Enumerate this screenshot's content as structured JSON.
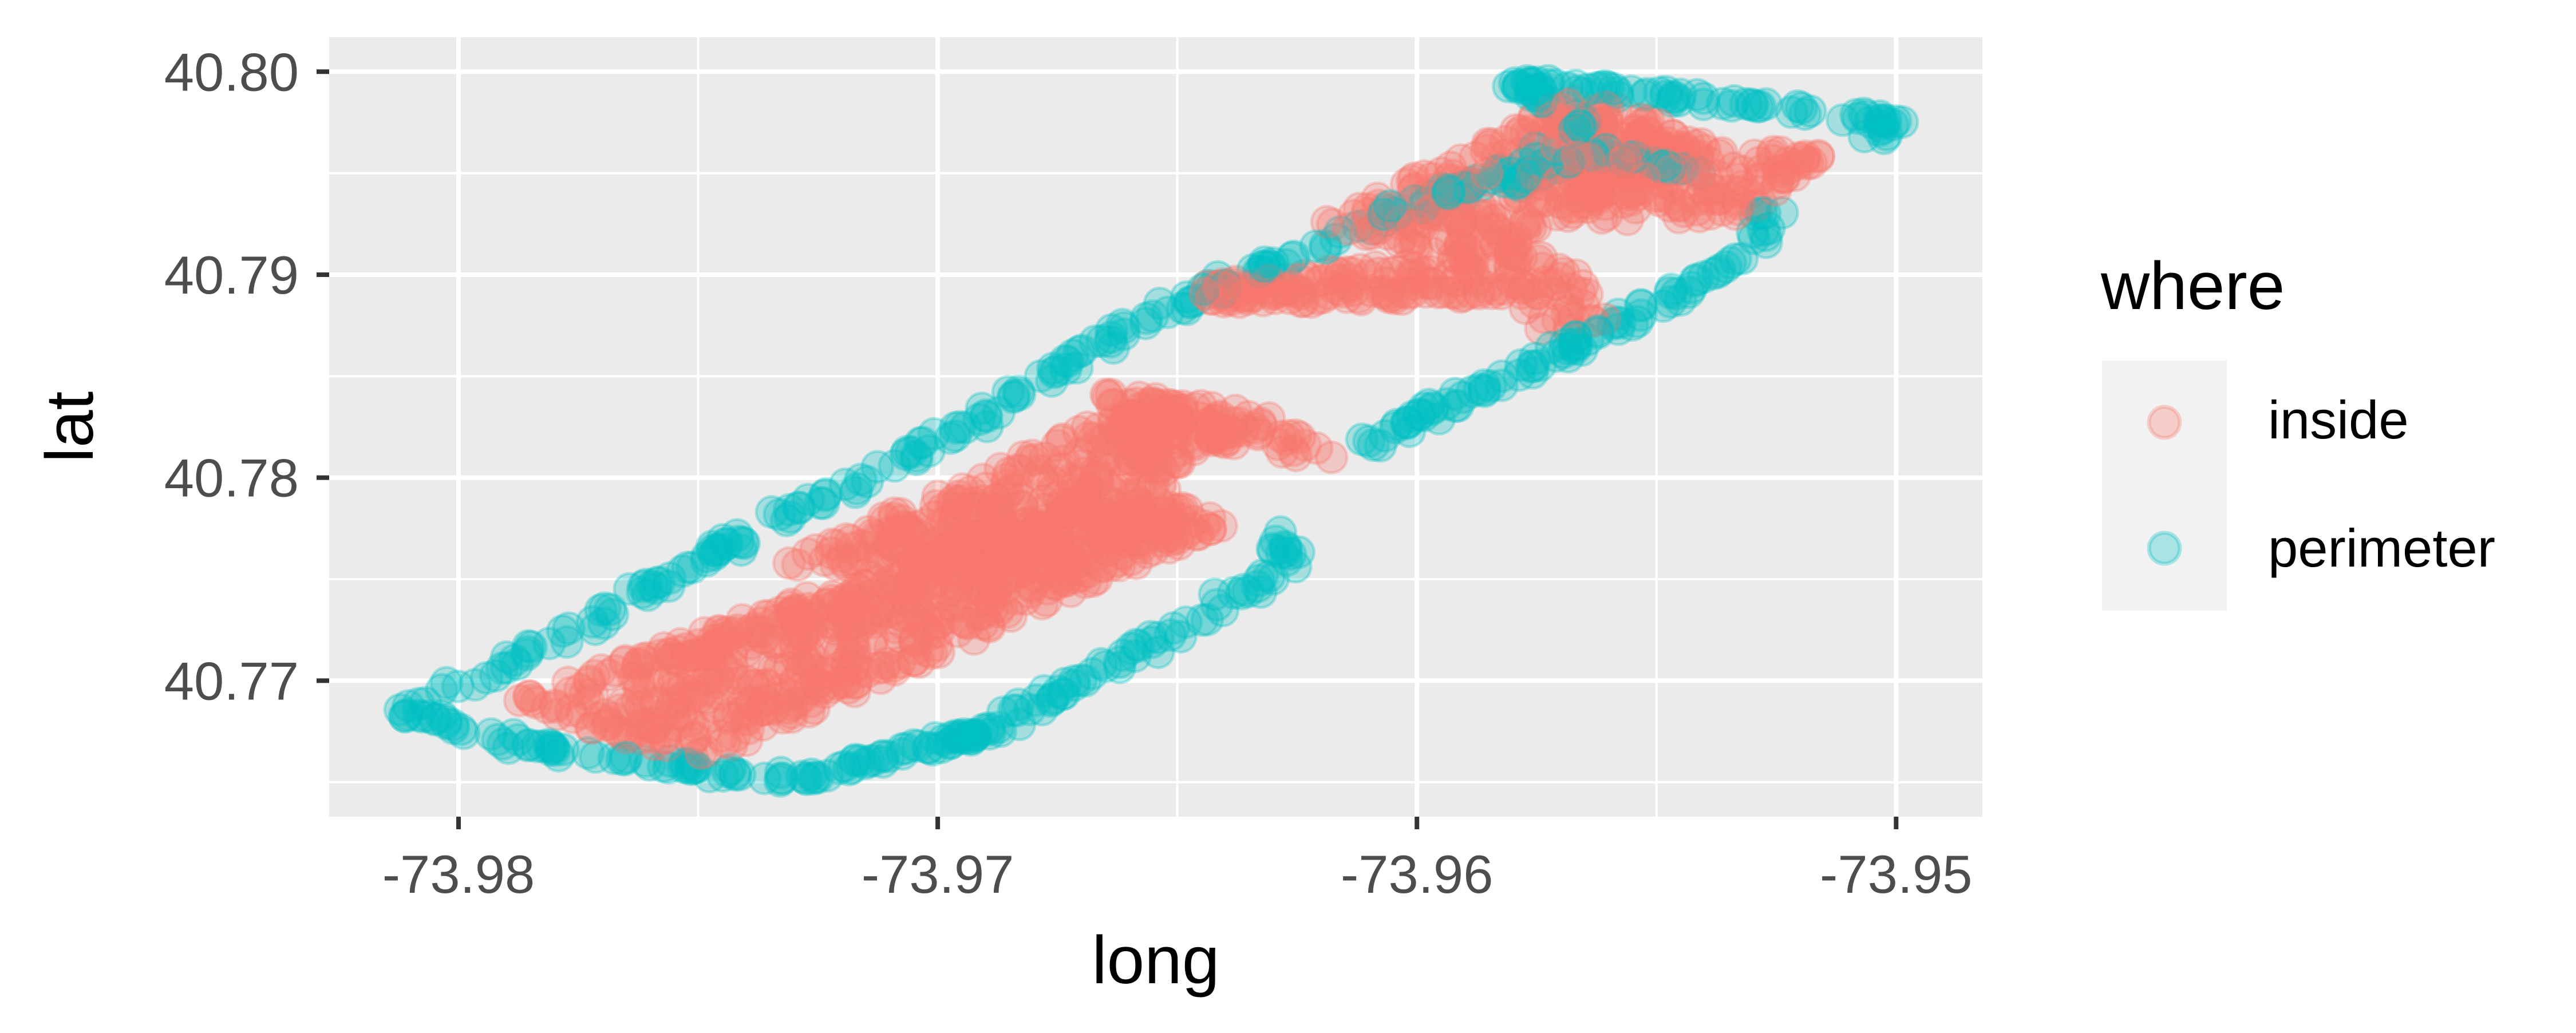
{
  "chart_data": {
    "type": "scatter",
    "title": "",
    "xlabel": "long",
    "ylabel": "lat",
    "xlim": [
      -73.9827,
      -73.9482
    ],
    "ylim": [
      40.7633,
      40.8017
    ],
    "x_ticks": [
      -73.98,
      -73.97,
      -73.96,
      -73.95
    ],
    "x_tick_labels": [
      "-73.98",
      "-73.97",
      "-73.96",
      "-73.95"
    ],
    "x_minor_ticks": [
      -73.975,
      -73.965,
      -73.955
    ],
    "y_ticks": [
      40.77,
      40.78,
      40.79,
      40.8
    ],
    "y_tick_labels": [
      "40.77",
      "40.78",
      "40.79",
      "40.80"
    ],
    "y_minor_ticks": [
      40.765,
      40.775,
      40.785,
      40.795
    ],
    "grid": true,
    "point_alpha": 0.3,
    "legend": {
      "title": "where",
      "position": "right",
      "entries": [
        {
          "name": "inside",
          "color": "#F8766D"
        },
        {
          "name": "perimeter",
          "color": "#00BFC4"
        }
      ]
    },
    "series": [
      {
        "name": "inside",
        "color": "#F8766D",
        "regions": [
          {
            "corners": [
              [
                -73.979,
                40.769
              ],
              [
                -73.9655,
                40.78
              ],
              [
                -73.964,
                40.7775
              ],
              [
                -73.975,
                40.766
              ]
            ],
            "count": 700
          },
          {
            "corners": [
              [
                -73.9735,
                40.7755
              ],
              [
                -73.9655,
                40.784
              ],
              [
                -73.963,
                40.783
              ],
              [
                -73.969,
                40.776
              ]
            ],
            "count": 300
          },
          {
            "corners": [
              [
                -73.967,
                40.7845
              ],
              [
                -73.9625,
                40.7825
              ],
              [
                -73.9615,
                40.7805
              ],
              [
                -73.966,
                40.7825
              ]
            ],
            "count": 60
          },
          {
            "corners": [
              [
                -73.965,
                40.7895
              ],
              [
                -73.958,
                40.791
              ],
              [
                -73.957,
                40.789
              ],
              [
                -73.964,
                40.7885
              ]
            ],
            "count": 140
          },
          {
            "corners": [
              [
                -73.962,
                40.7925
              ],
              [
                -73.9565,
                40.799
              ],
              [
                -73.954,
                40.7965
              ],
              [
                -73.959,
                40.7905
              ]
            ],
            "count": 260
          },
          {
            "corners": [
              [
                -73.9565,
                40.7965
              ],
              [
                -73.9515,
                40.796
              ],
              [
                -73.953,
                40.793
              ],
              [
                -73.957,
                40.7925
              ]
            ],
            "count": 140
          },
          {
            "corners": [
              [
                -73.9585,
                40.7915
              ],
              [
                -73.9575,
                40.787
              ],
              [
                -73.956,
                40.7875
              ],
              [
                -73.957,
                40.7915
              ]
            ],
            "count": 40
          }
        ]
      },
      {
        "name": "perimeter",
        "color": "#00BFC4",
        "paths": [
          [
            [
              -73.9812,
              40.7685
            ],
            [
              -73.9775,
              40.7725
            ],
            [
              -73.9745,
              40.7765
            ],
            [
              -73.9715,
              40.78
            ],
            [
              -73.969,
              40.783
            ],
            [
              -73.966,
              40.7875
            ],
            [
              -73.963,
              40.7905
            ],
            [
              -73.9605,
              40.793
            ],
            [
              -73.9575,
              40.7955
            ],
            [
              -73.9565,
              40.7975
            ],
            [
              -73.958,
              40.7995
            ],
            [
              -73.9535,
              40.7985
            ],
            [
              -73.95,
              40.7975
            ],
            [
              -73.9505,
              40.7965
            ]
          ],
          [
            [
              -73.9812,
              40.7685
            ],
            [
              -73.979,
              40.767
            ],
            [
              -73.976,
              40.766
            ],
            [
              -73.973,
              40.765
            ],
            [
              -73.9715,
              40.766
            ],
            [
              -73.969,
              40.7675
            ],
            [
              -73.967,
              40.77
            ],
            [
              -73.965,
              40.7725
            ],
            [
              -73.9625,
              40.776
            ],
            [
              -73.963,
              40.7775
            ]
          ],
          [
            [
              -73.961,
              40.7815
            ],
            [
              -73.96,
              40.783
            ],
            [
              -73.958,
              40.785
            ],
            [
              -73.956,
              40.7875
            ],
            [
              -73.9545,
              40.789
            ],
            [
              -73.953,
              40.791
            ],
            [
              -73.9525,
              40.7935
            ]
          ],
          [
            [
              -73.958,
              40.7945
            ],
            [
              -73.956,
              40.796
            ],
            [
              -73.954,
              40.795
            ]
          ]
        ],
        "count": 620
      }
    ]
  }
}
